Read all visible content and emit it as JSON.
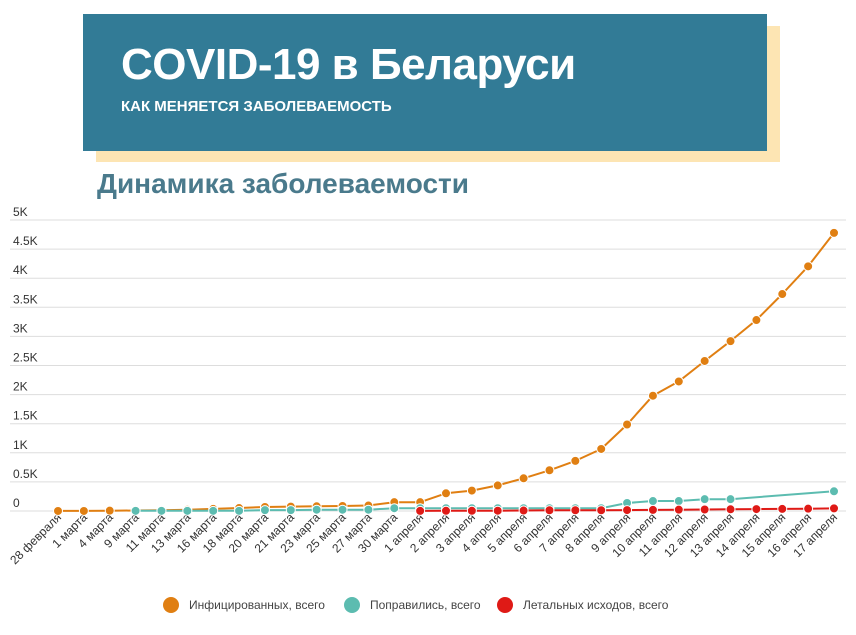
{
  "header": {
    "title": "COVID-19 в Беларуси",
    "subtitle": "КАК МЕНЯЕТСЯ ЗАБОЛЕВАЕМОСТЬ"
  },
  "section_title": "Динамика заболеваемости",
  "colors": {
    "header_bg": "#327b96",
    "header_shadow": "#fde5b3",
    "infected": "#e07f12",
    "recovered": "#5cbcb0",
    "deaths": "#df1a16",
    "grid": "#dddddd"
  },
  "chart_data": {
    "type": "line",
    "title": "Динамика заболеваемости",
    "categories": [
      "28 февраля",
      "1 марта",
      "4 марта",
      "9 марта",
      "11 марта",
      "13 марта",
      "16 марта",
      "18 марта",
      "20 марта",
      "21 марта",
      "23 марта",
      "25 марта",
      "27 марта",
      "30 марта",
      "1 апреля",
      "2 апреля",
      "3 апреля",
      "4 апреля",
      "5 апреля",
      "6 апреля",
      "7 апреля",
      "8 апреля",
      "9 апреля",
      "10 апреля",
      "11 апреля",
      "12 апреля",
      "13 апреля",
      "14 апреля",
      "15 апреля",
      "16 апреля",
      "17 апреля"
    ],
    "y_ticks": [
      "0",
      "0.5K",
      "1K",
      "1.5K",
      "2K",
      "2.5K",
      "3K",
      "3.5K",
      "4K",
      "4.5K",
      "5K"
    ],
    "ylim": [
      0,
      5000
    ],
    "grid": true,
    "legend_position": "bottom",
    "series": [
      {
        "name": "Инфицированных, всего",
        "color": "#e07f12",
        "values": [
          1,
          1,
          6,
          9,
          12,
          21,
          36,
          51,
          69,
          76,
          81,
          86,
          94,
          152,
          152,
          304,
          351,
          440,
          562,
          700,
          861,
          1066,
          1486,
          1981,
          2226,
          2578,
          2919,
          3281,
          3728,
          4204,
          4779
        ]
      },
      {
        "name": "Поправились, всего",
        "color": "#5cbcb0",
        "values": [
          null,
          null,
          null,
          3,
          3,
          3,
          3,
          3,
          15,
          15,
          22,
          22,
          22,
          48,
          48,
          48,
          48,
          48,
          48,
          48,
          48,
          48,
          138,
          171,
          171,
          203,
          203,
          null,
          null,
          null,
          339
        ]
      },
      {
        "name": "Летальных исходов, всего",
        "color": "#df1a16",
        "values": [
          null,
          null,
          null,
          null,
          null,
          null,
          null,
          null,
          null,
          null,
          null,
          null,
          null,
          null,
          2,
          4,
          4,
          5,
          8,
          13,
          13,
          13,
          16,
          19,
          23,
          26,
          29,
          33,
          36,
          40,
          45
        ]
      }
    ]
  }
}
